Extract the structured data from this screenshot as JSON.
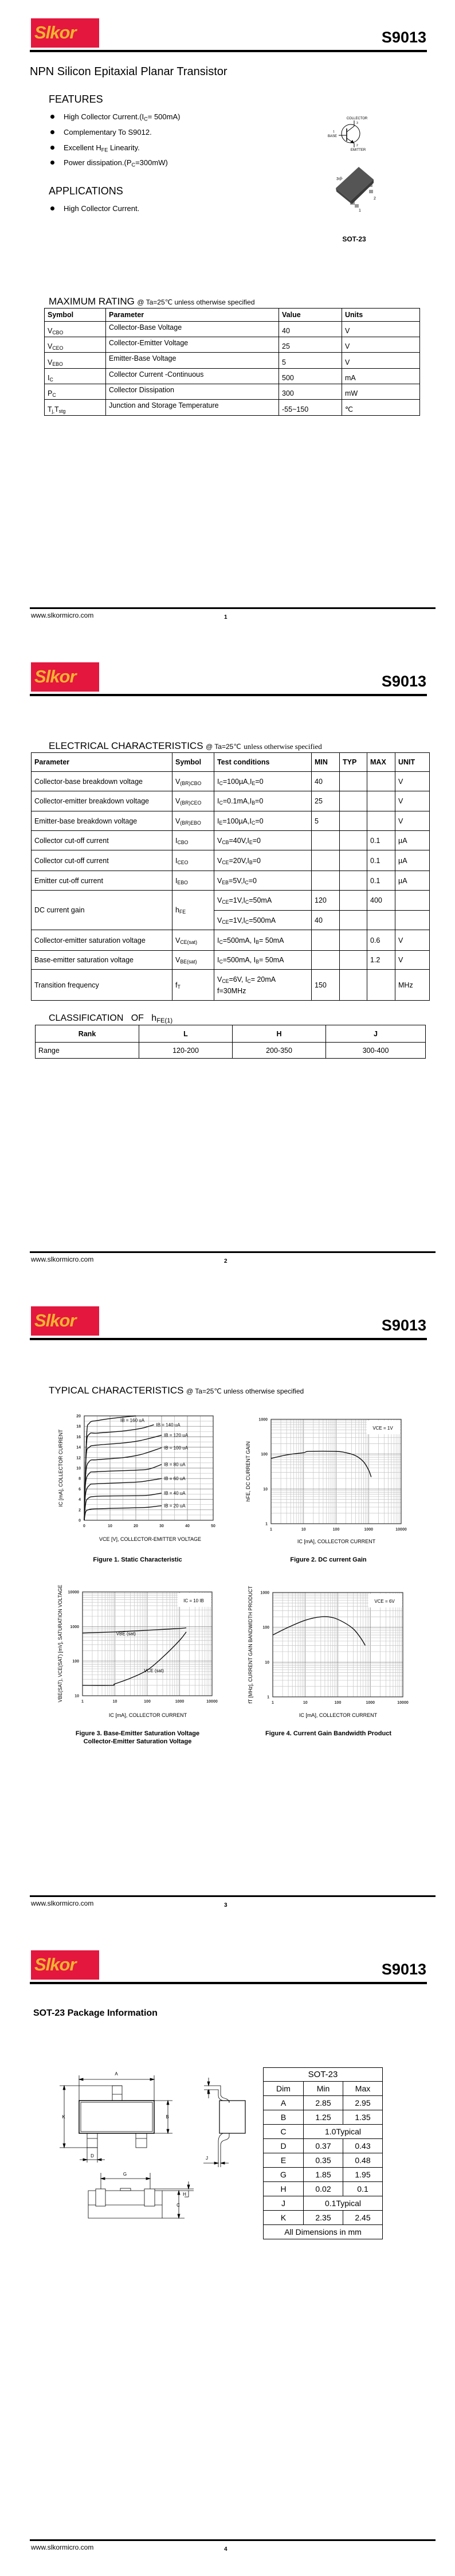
{
  "header": {
    "logo_text": "Slkor",
    "part_number": "S9013",
    "colors": {
      "logo_bg": "#e4173e",
      "logo_text": "#f6b330"
    }
  },
  "footer": {
    "url": "www.slkormicro.com"
  },
  "pages": [
    {
      "number": "1"
    },
    {
      "number": "2"
    },
    {
      "number": "3"
    },
    {
      "number": "4"
    }
  ],
  "page1": {
    "title": "NPN Silicon Epitaxial Planar Transistor",
    "features_heading": "FEATURES",
    "features": [
      [
        "High Collector Current.(I",
        "C",
        "= 500mA)"
      ],
      [
        "Complementary To S9012."
      ],
      [
        "Excellent H",
        "FE",
        " Linearity."
      ],
      [
        "Power dissipation.(P",
        "C",
        "=300mW)"
      ]
    ],
    "applications_heading": "APPLICATIONS",
    "applications": [
      [
        "High Collector Current."
      ]
    ],
    "symbol_labels": {
      "collector": "COLLECTOR",
      "base": "BASE",
      "emitter": "EMITTER",
      "pin_collector": "3",
      "pin_base": "1",
      "pin_emitter": "2"
    },
    "package_pins": {
      "pin3": "3",
      "pin2": "2",
      "pin1": "1"
    },
    "package_label": "SOT-23",
    "max_rating": {
      "title": "MAXIMUM RATING",
      "condition": "@ Ta=25℃ unless otherwise specified",
      "headers": [
        "Symbol",
        "Parameter",
        "Value",
        "Units"
      ],
      "rows": [
        {
          "symbol": [
            "V",
            "CBO"
          ],
          "parameter": "Collector-Base Voltage",
          "value": "40",
          "units": "V"
        },
        {
          "symbol": [
            "V",
            "CEO"
          ],
          "parameter": "Collector-Emitter Voltage",
          "value": "25",
          "units": "V"
        },
        {
          "symbol": [
            "V",
            "EBO"
          ],
          "parameter": "Emitter-Base Voltage",
          "value": "5",
          "units": "V"
        },
        {
          "symbol": [
            "I",
            "C"
          ],
          "parameter": "Collector Current -Continuous",
          "value": "500",
          "units": "mA"
        },
        {
          "symbol": [
            "P",
            "C"
          ],
          "parameter": "Collector Dissipation",
          "value": "300",
          "units": "mW"
        },
        {
          "symbol": [
            "T",
            "j,",
            "T",
            "stg"
          ],
          "parameter": "Junction and Storage Temperature",
          "value": "-55~150",
          "units": "℃"
        }
      ]
    }
  },
  "page2": {
    "electrical": {
      "title": "ELECTRICAL CHARACTERISTICS",
      "condition_prefix": "@ Ta=25℃",
      "condition_suffix": "unless otherwise specified",
      "headers": [
        "Parameter",
        "Symbol",
        "Test conditions",
        "MIN",
        "TYP",
        "MAX",
        "UNIT"
      ],
      "rows": [
        {
          "parameter": "Collector-base breakdown voltage",
          "symbol": [
            "V",
            "(BR)CBO"
          ],
          "conditions": [
            "I",
            "C",
            "=100µA,I",
            "E",
            "=0"
          ],
          "min": "40",
          "typ": "",
          "max": "",
          "unit": "V"
        },
        {
          "parameter": "Collector-emitter breakdown voltage",
          "symbol": [
            "V",
            "(BR)CEO"
          ],
          "conditions": [
            "I",
            "C",
            "=0.1mA,I",
            "B",
            "=0"
          ],
          "min": "25",
          "typ": "",
          "max": "",
          "unit": "V"
        },
        {
          "parameter": "Emitter-base breakdown voltage",
          "symbol": [
            "V",
            "(BR)EBO"
          ],
          "conditions": [
            "I",
            "E",
            "=100µA,I",
            "C",
            "=0"
          ],
          "min": "5",
          "typ": "",
          "max": "",
          "unit": "V"
        },
        {
          "parameter": "Collector cut-off current",
          "symbol": [
            "I",
            "CBO"
          ],
          "conditions": [
            "V",
            "CB",
            "=40V,I",
            "E",
            "=0"
          ],
          "min": "",
          "typ": "",
          "max": "0.1",
          "unit": "µA"
        },
        {
          "parameter": "Collector cut-off current",
          "symbol": [
            "I",
            "CEO"
          ],
          "conditions": [
            "V",
            "CE",
            "=20V,I",
            "B",
            "=0"
          ],
          "min": "",
          "typ": "",
          "max": "0.1",
          "unit": "µA"
        },
        {
          "parameter": "Emitter cut-off current",
          "symbol": [
            "I",
            "EBO"
          ],
          "conditions": [
            "V",
            "EB",
            "=5V,I",
            "C",
            "=0"
          ],
          "min": "",
          "typ": "",
          "max": "0.1",
          "unit": "µA"
        },
        {
          "parameter": "DC current gain",
          "symbol": [
            "h",
            "FE"
          ],
          "conditions": [
            "V",
            "CE",
            "=1V,I",
            "C",
            "=50mA"
          ],
          "min": "120",
          "typ": "",
          "max": "400",
          "unit": "",
          "conditions2": [
            "V",
            "CE",
            "=1V,I",
            "C",
            "=500mA"
          ],
          "min2": "40",
          "typ2": "",
          "max2": "",
          "unit2": ""
        },
        {
          "parameter": "Collector-emitter saturation voltage",
          "symbol": [
            "V",
            "CE(sat)"
          ],
          "conditions": [
            "I",
            "C",
            "=500mA, I",
            "B",
            "= 50mA"
          ],
          "min": "",
          "typ": "",
          "max": "0.6",
          "unit": "V"
        },
        {
          "parameter": "Base-emitter saturation voltage",
          "symbol": [
            "V",
            "BE(sat)"
          ],
          "conditions": [
            "I",
            "C",
            "=500mA, I",
            "B",
            "= 50mA"
          ],
          "min": "",
          "typ": "",
          "max": "1.2",
          "unit": "V"
        },
        {
          "parameter": "Transition frequency",
          "symbol": [
            "f",
            "T"
          ],
          "conditions": [
            "V",
            "CE",
            "=6V, I",
            "C",
            "= 20mA"
          ],
          "conditions_line2": "f=30MHz",
          "min": "150",
          "typ": "",
          "max": "",
          "unit": "MHz"
        }
      ]
    },
    "classification": {
      "title": [
        "CLASSIFICATION   OF   h",
        "FE(1)"
      ],
      "headers": [
        "Rank",
        "L",
        "H",
        "J"
      ],
      "row": [
        "Range",
        "120-200",
        "200-350",
        "300-400"
      ]
    }
  },
  "page3": {
    "title": "TYPICAL CHARACTERISTICS",
    "condition": "@ Ta=25℃ unless otherwise specified"
  },
  "chart_data": [
    {
      "type": "line",
      "title_lines": [
        "Figure 1. Static Characteristic"
      ],
      "xlabel": "VCE [V], COLLECTOR-EMITTER VOLTAGE",
      "ylabel": "IC [mA], COLLECTOR CURRENT",
      "xscale": "linear",
      "yscale": "linear",
      "xlim": [
        0,
        50
      ],
      "ylim": [
        0,
        20
      ],
      "xticks": [
        0,
        10,
        20,
        30,
        40,
        50
      ],
      "yticks": [
        0,
        2,
        4,
        6,
        8,
        10,
        12,
        14,
        16,
        18,
        20
      ],
      "grid": true,
      "legend": "inline labels",
      "series": [
        {
          "name": "IB = 20 uA",
          "points": [
            [
              0,
              0
            ],
            [
              0.5,
              1.5
            ],
            [
              1.5,
              2.0
            ],
            [
              5,
              2.2
            ],
            [
              20,
              2.4
            ],
            [
              25,
              2.5
            ],
            [
              30,
              2.8
            ]
          ]
        },
        {
          "name": "IB = 40 uA",
          "points": [
            [
              0,
              0
            ],
            [
              0.5,
              3
            ],
            [
              1.5,
              4.2
            ],
            [
              5,
              4.6
            ],
            [
              20,
              4.7
            ],
            [
              25,
              4.8
            ],
            [
              30,
              5.2
            ]
          ]
        },
        {
          "name": "IB = 60 uA",
          "points": [
            [
              0,
              0
            ],
            [
              0.5,
              5
            ],
            [
              2,
              6.7
            ],
            [
              5,
              7.0
            ],
            [
              20,
              7.3
            ],
            [
              25,
              7.6
            ],
            [
              30,
              8.0
            ]
          ]
        },
        {
          "name": "IB = 80 uA",
          "points": [
            [
              0,
              0
            ],
            [
              0.5,
              7
            ],
            [
              2,
              9
            ],
            [
              5,
              9.3
            ],
            [
              20,
              9.6
            ],
            [
              25,
              9.8
            ],
            [
              30,
              10.7
            ]
          ]
        },
        {
          "name": "IB = 100 uA",
          "points": [
            [
              0,
              0
            ],
            [
              0.6,
              9
            ],
            [
              2,
              11.3
            ],
            [
              5,
              11.6
            ],
            [
              15,
              12.0
            ],
            [
              22,
              12.6
            ],
            [
              30,
              13.9
            ]
          ]
        },
        {
          "name": "IB = 120 uA",
          "points": [
            [
              0,
              0
            ],
            [
              0.7,
              12
            ],
            [
              2,
              14
            ],
            [
              5,
              14.4
            ],
            [
              15,
              14.8
            ],
            [
              22,
              15.3
            ],
            [
              30,
              16.3
            ]
          ]
        },
        {
          "name": "IB = 140 uA",
          "points": [
            [
              0,
              0
            ],
            [
              0.8,
              14
            ],
            [
              2,
              16.5
            ],
            [
              5,
              16.7
            ],
            [
              15,
              17.1
            ],
            [
              22,
              17.6
            ],
            [
              27,
              18.3
            ]
          ]
        },
        {
          "name": "IB = 160 uA",
          "points": [
            [
              0,
              0
            ],
            [
              0.9,
              16
            ],
            [
              2,
              18.6
            ],
            [
              5,
              19.1
            ],
            [
              12,
              19.6
            ],
            [
              20,
              20
            ]
          ]
        }
      ]
    },
    {
      "type": "line",
      "title_lines": [
        "Figure 2. DC current Gain"
      ],
      "xlabel": "IC [mA], COLLECTOR CURRENT",
      "ylabel": "hFE, DC CURRENT GAIN",
      "xscale": "log",
      "yscale": "log",
      "xlim": [
        1,
        10000
      ],
      "ylim": [
        1,
        1000
      ],
      "xticks": [
        1,
        10,
        100,
        1000,
        10000
      ],
      "yticks": [
        1,
        10,
        100,
        1000
      ],
      "grid": true,
      "annotation": "VCE = 1V",
      "series": [
        {
          "points": [
            [
              1,
              75
            ],
            [
              3,
              95
            ],
            [
              10,
              110
            ],
            [
              15,
              120
            ],
            [
              100,
              120
            ],
            [
              200,
              110
            ],
            [
              400,
              90
            ],
            [
              700,
              60
            ],
            [
              1000,
              35
            ],
            [
              1200,
              22
            ]
          ]
        }
      ]
    },
    {
      "type": "line",
      "title_lines": [
        "Figure 3. Base-Emitter Saturation Voltage",
        "Collector-Emitter Saturation Voltage"
      ],
      "xlabel": "IC [mA], COLLECTOR CURRENT",
      "ylabel": "VBE(SAT), VCE(SAT) [mV], SATURATION VOLTAGE",
      "xscale": "log",
      "yscale": "log",
      "xlim": [
        1,
        10000
      ],
      "ylim": [
        10,
        10000
      ],
      "xticks": [
        1,
        10,
        100,
        1000,
        10000
      ],
      "yticks": [
        10,
        100,
        1000,
        10000
      ],
      "grid": true,
      "annotation": "IC = 10 IB",
      "series": [
        {
          "name": "VBE (sat)",
          "points": [
            [
              1,
              650
            ],
            [
              10,
              700
            ],
            [
              100,
              780
            ],
            [
              1000,
              880
            ],
            [
              1600,
              920
            ]
          ]
        },
        {
          "name": "VCE (sat)",
          "points": [
            [
              1,
              20
            ],
            [
              8,
              20
            ],
            [
              10,
              22
            ],
            [
              30,
              32
            ],
            [
              100,
              55
            ],
            [
              300,
              130
            ],
            [
              1000,
              400
            ],
            [
              1600,
              700
            ]
          ]
        }
      ]
    },
    {
      "type": "line",
      "title_lines": [
        "Figure 4. Current Gain Bandwidth Product"
      ],
      "xlabel": "IC [mA], COLLECTOR CURRENT",
      "ylabel": "fT [MHz], CURRENT GAIN BANDWIDTH PRODUCT",
      "xscale": "log",
      "yscale": "log",
      "xlim": [
        1,
        10000
      ],
      "ylim": [
        1,
        1000
      ],
      "xticks": [
        1,
        10,
        100,
        1000,
        10000
      ],
      "yticks": [
        1,
        10,
        100,
        1000
      ],
      "grid": true,
      "annotation": "VCE = 6V",
      "series": [
        {
          "points": [
            [
              1,
              60
            ],
            [
              3,
              100
            ],
            [
              10,
              160
            ],
            [
              30,
              200
            ],
            [
              70,
              190
            ],
            [
              150,
              140
            ],
            [
              300,
              90
            ],
            [
              500,
              50
            ],
            [
              700,
              30
            ]
          ]
        }
      ]
    }
  ],
  "page4": {
    "heading": "SOT-23 Package Information",
    "drawing_labels": {
      "A": "A",
      "B": "B",
      "C": "C",
      "D": "D",
      "E": "E",
      "G": "G",
      "H": "H",
      "J": "J",
      "K": "K"
    },
    "table": {
      "title": "SOT-23",
      "headers": [
        "Dim",
        "Min",
        "Max"
      ],
      "rows": [
        [
          "A",
          "2.85",
          "2.95"
        ],
        [
          "B",
          "1.25",
          "1.35"
        ],
        [
          "C",
          "1.0Typical"
        ],
        [
          "D",
          "0.37",
          "0.43"
        ],
        [
          "E",
          "0.35",
          "0.48"
        ],
        [
          "G",
          "1.85",
          "1.95"
        ],
        [
          "H",
          "0.02",
          "0.1"
        ],
        [
          "J",
          "0.1Typical"
        ],
        [
          "K",
          "2.35",
          "2.45"
        ]
      ],
      "note": "All Dimensions in mm"
    }
  }
}
